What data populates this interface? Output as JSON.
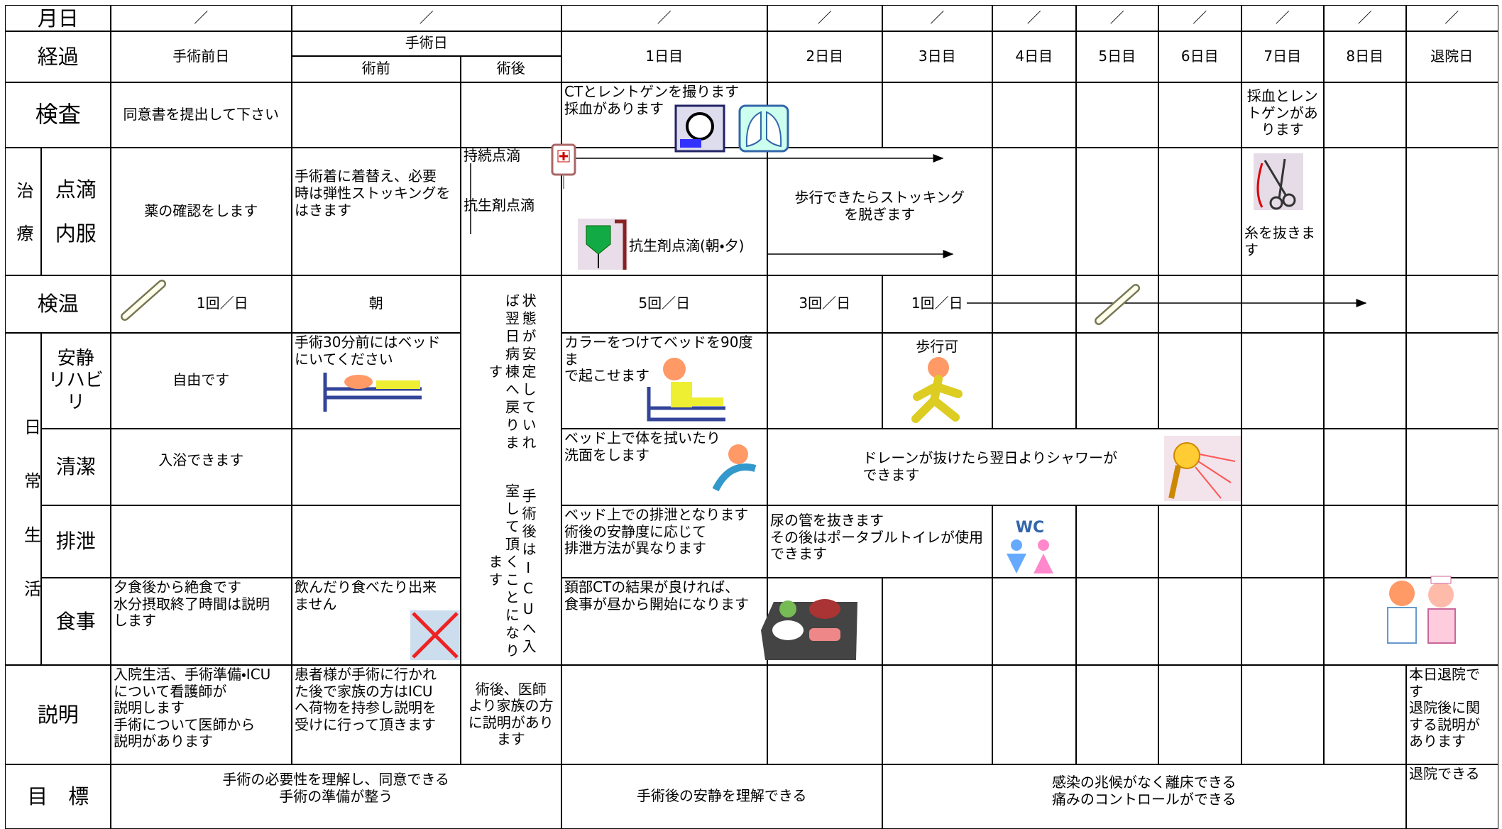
{
  "header": {
    "date_label": "月日",
    "dates": [
      "／",
      "／",
      "／",
      "／",
      "／",
      "／",
      "／",
      "／",
      "／",
      "／",
      "／"
    ]
  },
  "course": {
    "label": "経過",
    "pre_op_day": "手術前日",
    "op_day": "手術日",
    "before_op": "術前",
    "after_op": "術後",
    "days": [
      "1日目",
      "2日目",
      "3日目",
      "4日目",
      "5日目",
      "6日目",
      "7日目",
      "8日目"
    ],
    "discharge": "退院日"
  },
  "exam": {
    "label": "検査",
    "pre_op_day": "同意書を提出して下さい",
    "day1": "CTとレントゲンを撮ります\n採血があります",
    "day7": "採血とレン\nトゲンがあ\nります"
  },
  "treatment": {
    "group": "治療",
    "labels": [
      "点滴",
      "内服"
    ],
    "pre_op_day": "薬の確認をします",
    "before_op": "手術着に着替え、必要\n時は弾性ストッキングを\nはきます",
    "after_op": [
      "持続点滴",
      "抗生剤点滴"
    ],
    "day1": "抗生剤点滴(朝・夕)",
    "day2_3": "歩行できたらストッキング\nを脱ぎます",
    "day7": "糸を抜きます"
  },
  "temperature": {
    "label": "検温",
    "pre_op_day": "1回／日",
    "before_op": "朝",
    "day1": "5回／日",
    "day2": "3回／日",
    "day3": "1回／日"
  },
  "after_op_note": [
    "状態が安定していれば翌日病棟へ戻ります",
    "手術後はICUへ入室して頂くことになります"
  ],
  "daily_life": {
    "group": "日常生活",
    "rest": {
      "label": "安静\nリハビリ",
      "pre_op_day": "自由です",
      "before_op": "手術30分前にはベッド\nにいてください",
      "day1": "カラーをつけてベッドを90度ま\nで起こせます",
      "day3": "歩行可"
    },
    "hygiene": {
      "label": "清潔",
      "pre_op_day": "入浴できます",
      "day1": "ベッド上で体を拭いたり\n洗面をします",
      "day2_6": "ドレーンが抜けたら翌日よりシャワーが\nできます"
    },
    "excretion": {
      "label": "排泄",
      "day1": "ベッド上での排泄となります\n術後の安静度に応じて\n排泄方法が異なります",
      "day2_3": "尿の管を抜きます\nその後はポータブルトイレが使用\nできます"
    },
    "meal": {
      "label": "食事",
      "pre_op_day": "夕食後から絶食です\n水分摂取終了時間は説明\nします",
      "before_op": "飲んだり食べたり出来\nません",
      "day1": "頚部CTの結果が良ければ、\n食事が昼から開始になります"
    }
  },
  "explanation": {
    "label": "説明",
    "pre_op_day": "入院生活、手術準備・ICU\nについて看護師が\n説明します\n手術について医師から\n説明があります",
    "before_op": "患者様が手術に行かれ\nた後で家族の方はICU\nへ荷物を持参し説明を\n受けに行って頂きます",
    "after_op": "術後、医師\nより家族の方\nに説明があり\nます",
    "discharge": "本日退院で\nす\n退院後に関\nする説明が\nあります"
  },
  "goal": {
    "label": "目　標",
    "pre_op": "手術の必要性を理解し、同意できる\n手術の準備が整う",
    "post_op": "手術後の安静を理解できる",
    "recovery": "感染の兆候がなく離床できる\n痛みのコントロールができる",
    "discharge": "退院できる"
  }
}
